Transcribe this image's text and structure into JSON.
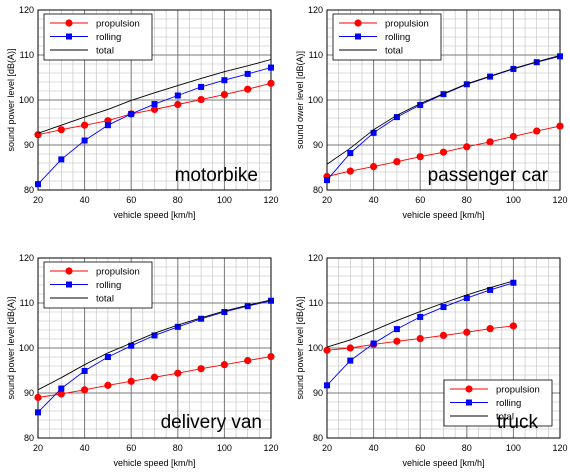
{
  "chart_data": [
    {
      "type": "line",
      "vehicle_label": "motorbike",
      "xlabel": "vehicle speed [km/h]",
      "ylabel": "sound power level [dB(A)]",
      "xlim": [
        20,
        120
      ],
      "ylim": [
        80,
        120
      ],
      "xticks": [
        20,
        40,
        60,
        80,
        100,
        120
      ],
      "yticks": [
        80,
        90,
        100,
        110,
        120
      ],
      "grid": true,
      "legend_position": "top-left",
      "series": [
        {
          "name": "propulsion",
          "marker": "circle",
          "color": "#ff0000",
          "x": [
            20,
            30,
            40,
            50,
            60,
            70,
            80,
            90,
            100,
            110,
            120
          ],
          "y": [
            92.3,
            93.4,
            94.4,
            95.4,
            96.9,
            97.9,
            99.0,
            100.1,
            101.2,
            102.4,
            103.7
          ]
        },
        {
          "name": "rolling",
          "marker": "square",
          "color": "#0000ff",
          "x": [
            20,
            30,
            40,
            50,
            60,
            70,
            80,
            90,
            100,
            110,
            120
          ],
          "y": [
            81.3,
            86.8,
            91.0,
            94.4,
            96.9,
            99.1,
            101.0,
            102.9,
            104.4,
            105.8,
            107.2
          ]
        },
        {
          "name": "total",
          "marker": "none",
          "color": "#000000",
          "x": [
            20,
            30,
            40,
            50,
            60,
            70,
            80,
            90,
            100,
            110,
            120
          ],
          "y": [
            92.6,
            94.4,
            96.2,
            97.9,
            99.9,
            101.6,
            103.2,
            104.8,
            106.3,
            107.6,
            109.0
          ]
        }
      ]
    },
    {
      "type": "line",
      "vehicle_label": "passenger car",
      "xlabel": "vehicle speed [km/h]",
      "ylabel": "sound ower level [dB(A)]",
      "xlim": [
        20,
        120
      ],
      "ylim": [
        80,
        120
      ],
      "xticks": [
        20,
        40,
        60,
        80,
        100,
        120
      ],
      "yticks": [
        80,
        90,
        100,
        110,
        120
      ],
      "grid": true,
      "legend_position": "top-left",
      "series": [
        {
          "name": "propulsion",
          "marker": "circle",
          "color": "#ff0000",
          "x": [
            20,
            30,
            40,
            50,
            60,
            70,
            80,
            90,
            100,
            110,
            120
          ],
          "y": [
            83.0,
            84.2,
            85.2,
            86.3,
            87.4,
            88.4,
            89.6,
            90.7,
            91.9,
            93.1,
            94.2
          ]
        },
        {
          "name": "rolling",
          "marker": "square",
          "color": "#0000ff",
          "x": [
            20,
            30,
            40,
            50,
            60,
            70,
            80,
            90,
            100,
            110,
            120
          ],
          "y": [
            82.2,
            88.2,
            92.7,
            96.2,
            98.9,
            101.3,
            103.5,
            105.2,
            106.9,
            108.4,
            109.7
          ]
        },
        {
          "name": "total",
          "marker": "none",
          "color": "#000000",
          "x": [
            20,
            30,
            40,
            50,
            60,
            70,
            80,
            90,
            100,
            110,
            120
          ],
          "y": [
            85.7,
            89.3,
            93.4,
            96.6,
            99.2,
            101.4,
            103.6,
            105.3,
            107.0,
            108.5,
            109.9
          ]
        }
      ]
    },
    {
      "type": "line",
      "vehicle_label": "delivery van",
      "xlabel": "vehicle speed [km/h]",
      "ylabel": "sound power level [dB(A)]",
      "xlim": [
        20,
        120
      ],
      "ylim": [
        80,
        120
      ],
      "xticks": [
        20,
        40,
        60,
        80,
        100,
        120
      ],
      "yticks": [
        80,
        90,
        100,
        110,
        120
      ],
      "grid": true,
      "legend_position": "top-left",
      "series": [
        {
          "name": "propulsion",
          "marker": "circle",
          "color": "#ff0000",
          "x": [
            20,
            30,
            40,
            50,
            60,
            70,
            80,
            90,
            100,
            110,
            120
          ],
          "y": [
            89.0,
            89.8,
            90.7,
            91.7,
            92.6,
            93.5,
            94.4,
            95.4,
            96.3,
            97.2,
            98.1
          ]
        },
        {
          "name": "rolling",
          "marker": "square",
          "color": "#0000ff",
          "x": [
            20,
            30,
            40,
            50,
            60,
            70,
            80,
            90,
            100,
            110,
            120
          ],
          "y": [
            85.7,
            91.0,
            94.9,
            98.0,
            100.5,
            102.8,
            104.7,
            106.5,
            108.0,
            109.3,
            110.5
          ]
        },
        {
          "name": "total",
          "marker": "none",
          "color": "#000000",
          "x": [
            20,
            30,
            40,
            50,
            60,
            70,
            80,
            90,
            100,
            110,
            120
          ],
          "y": [
            90.7,
            93.4,
            96.3,
            98.9,
            101.1,
            103.3,
            105.1,
            106.7,
            108.2,
            109.5,
            110.7
          ]
        }
      ]
    },
    {
      "type": "line",
      "vehicle_label": "truck",
      "xlabel": "vehicle speed [km/h]",
      "ylabel": "sound power level [dB(A)]",
      "xlim": [
        20,
        120
      ],
      "ylim": [
        80,
        120
      ],
      "xticks": [
        20,
        40,
        60,
        80,
        100,
        120
      ],
      "yticks": [
        80,
        90,
        100,
        110,
        120
      ],
      "grid": true,
      "legend_position": "bottom-right",
      "series": [
        {
          "name": "propulsion",
          "marker": "circle",
          "color": "#ff0000",
          "x": [
            20,
            30,
            40,
            50,
            60,
            70,
            80,
            90,
            100
          ],
          "y": [
            99.5,
            100.0,
            100.8,
            101.5,
            102.1,
            102.8,
            103.5,
            104.3,
            104.9
          ]
        },
        {
          "name": "rolling",
          "marker": "square",
          "color": "#0000ff",
          "x": [
            20,
            30,
            40,
            50,
            60,
            70,
            80,
            90,
            100
          ],
          "y": [
            91.7,
            97.2,
            101.0,
            104.2,
            106.9,
            109.1,
            111.1,
            112.9,
            114.5
          ]
        },
        {
          "name": "total",
          "marker": "none",
          "color": "#000000",
          "x": [
            20,
            30,
            40,
            50,
            60,
            70,
            80,
            90,
            100
          ],
          "y": [
            100.2,
            101.8,
            103.9,
            106.1,
            108.1,
            110.0,
            111.8,
            113.4,
            114.9
          ]
        }
      ]
    }
  ]
}
